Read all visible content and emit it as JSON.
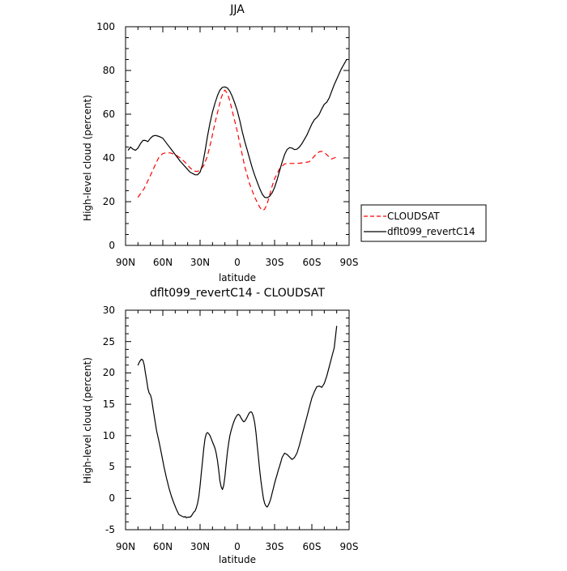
{
  "chart_data": [
    {
      "type": "line",
      "title": "JJA",
      "xlabel": "latitude",
      "ylabel": "High-level cloud (percent)",
      "xlim": [
        90,
        -90
      ],
      "ylim": [
        0,
        100
      ],
      "xticks": [
        90,
        60,
        30,
        0,
        -30,
        -60,
        -90
      ],
      "xtick_labels": [
        "90N",
        "60N",
        "30N",
        "0",
        "30S",
        "60S",
        "90S"
      ],
      "yticks": [
        0,
        20,
        40,
        60,
        80,
        100
      ],
      "ytick_labels": [
        "0",
        "20",
        "40",
        "60",
        "80",
        "100"
      ],
      "legend": {
        "placement": "right"
      },
      "series": [
        {
          "name": "CLOUDSAT",
          "color": "#ff0000",
          "style": "dashed",
          "x": [
            80,
            75,
            70,
            66,
            63,
            60,
            57,
            54,
            50,
            46,
            42,
            38,
            35,
            32,
            30,
            27,
            24,
            21,
            18,
            15,
            13,
            11,
            10,
            8,
            6,
            3,
            0,
            -3,
            -6,
            -10,
            -14,
            -18,
            -20,
            -22,
            -24,
            -26,
            -28,
            -30,
            -34,
            -38,
            -42,
            -46,
            -50,
            -54,
            -58,
            -60,
            -62,
            -64,
            -66,
            -68,
            -70,
            -72,
            -74,
            -76,
            -78,
            -80
          ],
          "y": [
            22,
            26,
            32,
            37,
            40.5,
            42,
            42.4,
            42.3,
            41.5,
            40,
            38,
            35.5,
            34,
            33.8,
            34.5,
            36.5,
            41,
            48,
            56,
            63,
            67.5,
            70.5,
            71,
            69.5,
            66,
            59,
            52,
            44,
            36,
            28,
            22,
            17.5,
            16,
            16.5,
            19,
            23,
            27,
            30.5,
            35,
            37.3,
            37.5,
            37.5,
            37.6,
            37.8,
            38.3,
            39.5,
            40.8,
            42,
            42.8,
            43,
            42.5,
            41.5,
            40.3,
            39.5,
            40,
            40.5
          ]
        },
        {
          "name": "dflt099_revertC14",
          "color": "#000000",
          "style": "solid",
          "x": [
            88,
            86,
            84,
            82,
            80,
            78,
            76,
            74,
            72,
            70,
            68,
            66,
            64,
            62,
            60,
            58,
            56,
            54,
            52,
            50,
            46,
            42,
            38,
            34,
            32,
            30,
            28,
            26,
            24,
            22,
            20,
            18,
            16,
            14,
            12,
            10,
            8,
            6,
            4,
            2,
            0,
            -2,
            -4,
            -6,
            -8,
            -10,
            -12,
            -14,
            -16,
            -18,
            -20,
            -22,
            -24,
            -26,
            -28,
            -30,
            -32,
            -34,
            -36,
            -38,
            -40,
            -42,
            -44,
            -46,
            -48,
            -50,
            -52,
            -54,
            -56,
            -58,
            -60,
            -62,
            -64,
            -66,
            -68,
            -70,
            -72,
            -74,
            -76,
            -78,
            -80,
            -82,
            -84,
            -86,
            -88
          ],
          "y": [
            43.5,
            45,
            44,
            43.5,
            44.5,
            46.5,
            48,
            48,
            47.5,
            49,
            50,
            50.3,
            50,
            49.6,
            49,
            47.5,
            46,
            44.5,
            43,
            41.5,
            38.5,
            36,
            33.5,
            32.3,
            32.3,
            33.5,
            37,
            43,
            50,
            56,
            61,
            65,
            68.5,
            71,
            72.3,
            72.5,
            72,
            70.5,
            68,
            65,
            61.5,
            57,
            52,
            47.5,
            43.5,
            39.5,
            35.5,
            32,
            29,
            26,
            23.5,
            22,
            21.8,
            22.5,
            24,
            26.5,
            30,
            34,
            38,
            41.5,
            43.8,
            44.7,
            44.5,
            43.8,
            44,
            45,
            46.5,
            48.5,
            50.5,
            53,
            55.5,
            57.5,
            58.5,
            60,
            62.5,
            64.5,
            65.5,
            67.5,
            70.5,
            73.5,
            76,
            78.5,
            81,
            83,
            85
          ]
        }
      ]
    },
    {
      "type": "line",
      "title": "dflt099_revertC14 - CLOUDSAT",
      "xlabel": "latitude",
      "ylabel": "High-level cloud (percent)",
      "xlim": [
        90,
        -90
      ],
      "ylim": [
        -5,
        30
      ],
      "xticks": [
        90,
        60,
        30,
        0,
        -30,
        -60,
        -90
      ],
      "xtick_labels": [
        "90N",
        "60N",
        "30N",
        "0",
        "30S",
        "60S",
        "90S"
      ],
      "yticks": [
        -5,
        0,
        5,
        10,
        15,
        20,
        25,
        30
      ],
      "ytick_labels": [
        "-5",
        "0",
        "5",
        "10",
        "15",
        "20",
        "25",
        "30"
      ],
      "series": [
        {
          "color": "#000000",
          "style": "solid",
          "x": [
            80,
            79,
            78,
            77,
            76,
            75,
            74,
            73,
            72,
            71,
            70,
            69,
            68,
            67,
            66,
            65,
            63,
            61,
            59,
            57,
            55,
            53,
            51,
            49,
            47,
            45,
            43,
            42,
            41,
            40,
            39,
            38,
            37,
            36,
            35,
            34,
            33,
            32,
            31,
            30,
            29,
            28,
            27,
            26,
            25,
            24,
            23,
            22,
            21,
            20,
            19,
            18,
            17,
            16,
            15,
            14,
            13,
            12,
            11,
            10,
            9,
            8,
            7,
            6,
            5,
            4,
            3,
            2,
            1,
            0,
            -1,
            -2,
            -3,
            -4,
            -5,
            -6,
            -7,
            -8,
            -9,
            -10,
            -11,
            -12,
            -13,
            -14,
            -15,
            -16,
            -17,
            -18,
            -19,
            -20,
            -21,
            -22,
            -23,
            -24,
            -25,
            -26,
            -27,
            -28,
            -29,
            -30,
            -31,
            -32,
            -33,
            -34,
            -35,
            -36,
            -38,
            -40,
            -42,
            -44,
            -46,
            -48,
            -50,
            -52,
            -54,
            -56,
            -58,
            -60,
            -62,
            -64,
            -66,
            -68,
            -70,
            -72,
            -74,
            -76,
            -78,
            -80
          ],
          "y": [
            21.2,
            21.7,
            22,
            22.2,
            22,
            21.3,
            20,
            18.8,
            17.5,
            16.8,
            16.5,
            15.8,
            14.5,
            13.2,
            12,
            10.8,
            9,
            7,
            5,
            3.2,
            1.6,
            0.3,
            -0.8,
            -1.8,
            -2.6,
            -2.8,
            -3,
            -2.9,
            -3.1,
            -3,
            -3,
            -3,
            -2.8,
            -2.5,
            -2.2,
            -2,
            -1.5,
            -0.8,
            0.3,
            2,
            4,
            6,
            8,
            9.5,
            10.3,
            10.5,
            10.3,
            10,
            9.5,
            9,
            8.5,
            8,
            7.2,
            6,
            4.5,
            2.8,
            1.8,
            1.4,
            2,
            3.5,
            5.5,
            7.3,
            8.8,
            10,
            10.8,
            11.5,
            12.1,
            12.6,
            13,
            13.3,
            13.4,
            13.2,
            12.8,
            12.5,
            12.2,
            12.3,
            12.6,
            13,
            13.4,
            13.7,
            13.8,
            13.6,
            13,
            12,
            10.5,
            8.5,
            6.5,
            4.5,
            2.8,
            1.3,
            0,
            -0.8,
            -1.2,
            -1.4,
            -1.1,
            -0.6,
            0,
            0.8,
            1.6,
            2.4,
            3.1,
            3.8,
            4.5,
            5.1,
            5.8,
            6.5,
            7.2,
            7,
            6.6,
            6.2,
            6.5,
            7.2,
            8.5,
            10,
            11.5,
            13,
            14.5,
            16,
            17,
            17.8,
            17.9,
            17.7,
            18.3,
            19.5,
            21,
            22.5,
            24,
            27.5
          ]
        }
      ]
    }
  ]
}
